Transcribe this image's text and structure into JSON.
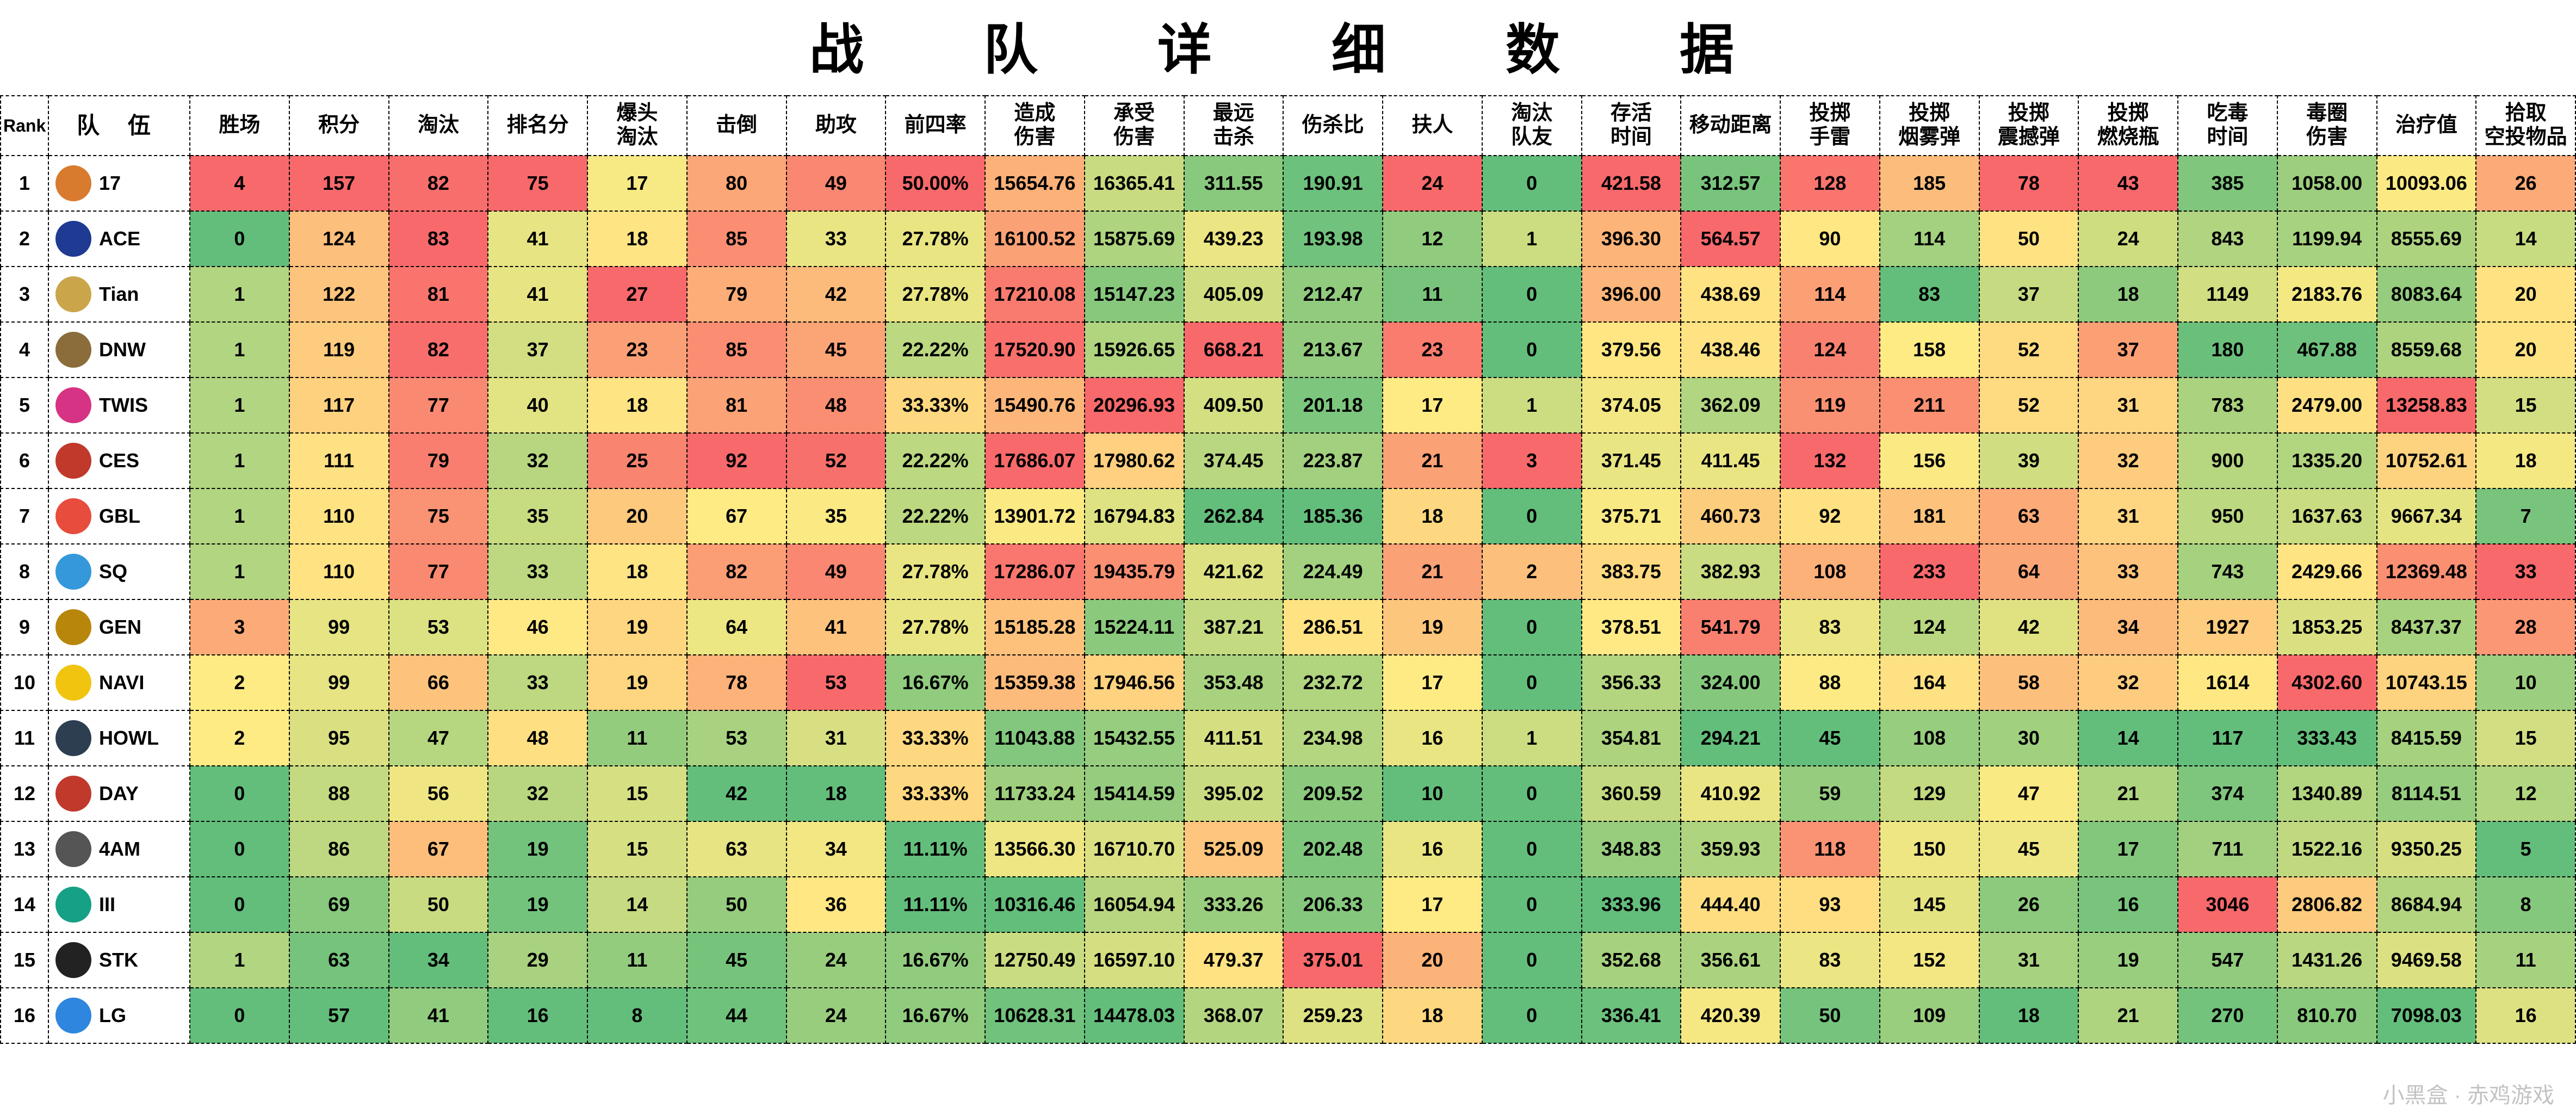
{
  "title": "战　队　详　细　数　据",
  "heatmap": {
    "color_low": "#63be7b",
    "color_mid": "#ffeb84",
    "color_high": "#f8696b",
    "border_style": "dashed",
    "border_color": "#000000",
    "font_family": "Microsoft YaHei",
    "header_bg": "#ffffff",
    "title_fontsize": 100,
    "header_fontsize": 38,
    "cell_fontsize": 36
  },
  "columns": [
    {
      "key": "rank",
      "label": "Rank",
      "heat": false
    },
    {
      "key": "team",
      "label": "队 伍",
      "heat": false
    },
    {
      "key": "wins",
      "label": "胜场",
      "heat": true,
      "dir": "high"
    },
    {
      "key": "points",
      "label": "积分",
      "heat": true,
      "dir": "high"
    },
    {
      "key": "elim",
      "label": "淘汰",
      "heat": true,
      "dir": "high"
    },
    {
      "key": "placement",
      "label": "排名分",
      "heat": true,
      "dir": "high"
    },
    {
      "key": "headshot",
      "label": "爆头\n淘汰",
      "heat": true,
      "dir": "high"
    },
    {
      "key": "knock",
      "label": "击倒",
      "heat": true,
      "dir": "high"
    },
    {
      "key": "assist",
      "label": "助攻",
      "heat": true,
      "dir": "high"
    },
    {
      "key": "top4",
      "label": "前四率",
      "heat": true,
      "dir": "high",
      "fmt": "pct"
    },
    {
      "key": "dmg_dealt",
      "label": "造成\n伤害",
      "heat": true,
      "dir": "high",
      "fmt": "f2"
    },
    {
      "key": "dmg_taken",
      "label": "承受\n伤害",
      "heat": true,
      "dir": "high",
      "fmt": "f2"
    },
    {
      "key": "long_kill",
      "label": "最远\n击杀",
      "heat": true,
      "dir": "high",
      "fmt": "f2"
    },
    {
      "key": "kd",
      "label": "伤杀比",
      "heat": true,
      "dir": "high",
      "fmt": "f2"
    },
    {
      "key": "revive",
      "label": "扶人",
      "heat": true,
      "dir": "high"
    },
    {
      "key": "teamkill",
      "label": "淘汰\n队友",
      "heat": true,
      "dir": "high"
    },
    {
      "key": "alive",
      "label": "存活\n时间",
      "heat": true,
      "dir": "high",
      "fmt": "f2"
    },
    {
      "key": "move",
      "label": "移动距离",
      "heat": true,
      "dir": "high",
      "fmt": "f2"
    },
    {
      "key": "frag",
      "label": "投掷\n手雷",
      "heat": true,
      "dir": "high"
    },
    {
      "key": "smoke",
      "label": "投掷\n烟雾弹",
      "heat": true,
      "dir": "high"
    },
    {
      "key": "stun",
      "label": "投掷\n震撼弹",
      "heat": true,
      "dir": "high"
    },
    {
      "key": "molly",
      "label": "投掷\n燃烧瓶",
      "heat": true,
      "dir": "high"
    },
    {
      "key": "blue_time",
      "label": "吃毒\n时间",
      "heat": true,
      "dir": "high"
    },
    {
      "key": "blue_dmg",
      "label": "毒圈\n伤害",
      "heat": true,
      "dir": "high",
      "fmt": "f2"
    },
    {
      "key": "heal",
      "label": "治疗值",
      "heat": true,
      "dir": "high",
      "fmt": "f2"
    },
    {
      "key": "airdrop",
      "label": "拾取\n空投物品",
      "heat": true,
      "dir": "high"
    }
  ],
  "rows": [
    {
      "rank": 1,
      "team": "17",
      "logo_color": "#d97b2f",
      "wins": 4,
      "points": 157,
      "elim": 82,
      "placement": 75,
      "headshot": 17,
      "knock": 80,
      "assist": 49,
      "top4": 50.0,
      "dmg_dealt": 15654.76,
      "dmg_taken": 16365.41,
      "long_kill": 311.55,
      "kd": 190.91,
      "revive": 24,
      "teamkill": 0,
      "alive": 421.58,
      "move": 312.57,
      "frag": 128,
      "smoke": 185,
      "stun": 78,
      "molly": 43,
      "blue_time": 385,
      "blue_dmg": 1058.0,
      "heal": 10093.06,
      "airdrop": 26
    },
    {
      "rank": 2,
      "team": "ACE",
      "logo_color": "#1f3a93",
      "wins": 0,
      "points": 124,
      "elim": 83,
      "placement": 41,
      "headshot": 18,
      "knock": 85,
      "assist": 33,
      "top4": 27.78,
      "dmg_dealt": 16100.52,
      "dmg_taken": 15875.69,
      "long_kill": 439.23,
      "kd": 193.98,
      "revive": 12,
      "teamkill": 1,
      "alive": 396.3,
      "move": 564.57,
      "frag": 90,
      "smoke": 114,
      "stun": 50,
      "molly": 24,
      "blue_time": 843,
      "blue_dmg": 1199.94,
      "heal": 8555.69,
      "airdrop": 14
    },
    {
      "rank": 3,
      "team": "Tian",
      "logo_color": "#caa54a",
      "wins": 1,
      "points": 122,
      "elim": 81,
      "placement": 41,
      "headshot": 27,
      "knock": 79,
      "assist": 42,
      "top4": 27.78,
      "dmg_dealt": 17210.08,
      "dmg_taken": 15147.23,
      "long_kill": 405.09,
      "kd": 212.47,
      "revive": 11,
      "teamkill": 0,
      "alive": 396.0,
      "move": 438.69,
      "frag": 114,
      "smoke": 83,
      "stun": 37,
      "molly": 18,
      "blue_time": 1149,
      "blue_dmg": 2183.76,
      "heal": 8083.64,
      "airdrop": 20
    },
    {
      "rank": 4,
      "team": "DNW",
      "logo_color": "#8a6d3b",
      "wins": 1,
      "points": 119,
      "elim": 82,
      "placement": 37,
      "headshot": 23,
      "knock": 85,
      "assist": 45,
      "top4": 22.22,
      "dmg_dealt": 17520.9,
      "dmg_taken": 15926.65,
      "long_kill": 668.21,
      "kd": 213.67,
      "revive": 23,
      "teamkill": 0,
      "alive": 379.56,
      "move": 438.46,
      "frag": 124,
      "smoke": 158,
      "stun": 52,
      "molly": 37,
      "blue_time": 180,
      "blue_dmg": 467.88,
      "heal": 8559.68,
      "airdrop": 20
    },
    {
      "rank": 5,
      "team": "TWIS",
      "logo_color": "#d63384",
      "wins": 1,
      "points": 117,
      "elim": 77,
      "placement": 40,
      "headshot": 18,
      "knock": 81,
      "assist": 48,
      "top4": 33.33,
      "dmg_dealt": 15490.76,
      "dmg_taken": 20296.93,
      "long_kill": 409.5,
      "kd": 201.18,
      "revive": 17,
      "teamkill": 1,
      "alive": 374.05,
      "move": 362.09,
      "frag": 119,
      "smoke": 211,
      "stun": 52,
      "molly": 31,
      "blue_time": 783,
      "blue_dmg": 2479.0,
      "heal": 13258.83,
      "airdrop": 15
    },
    {
      "rank": 6,
      "team": "CES",
      "logo_color": "#c0392b",
      "wins": 1,
      "points": 111,
      "elim": 79,
      "placement": 32,
      "headshot": 25,
      "knock": 92,
      "assist": 52,
      "top4": 22.22,
      "dmg_dealt": 17686.07,
      "dmg_taken": 17980.62,
      "long_kill": 374.45,
      "kd": 223.87,
      "revive": 21,
      "teamkill": 3,
      "alive": 371.45,
      "move": 411.45,
      "frag": 132,
      "smoke": 156,
      "stun": 39,
      "molly": 32,
      "blue_time": 900,
      "blue_dmg": 1335.2,
      "heal": 10752.61,
      "airdrop": 18
    },
    {
      "rank": 7,
      "team": "GBL",
      "logo_color": "#e74c3c",
      "wins": 1,
      "points": 110,
      "elim": 75,
      "placement": 35,
      "headshot": 20,
      "knock": 67,
      "assist": 35,
      "top4": 22.22,
      "dmg_dealt": 13901.72,
      "dmg_taken": 16794.83,
      "long_kill": 262.84,
      "kd": 185.36,
      "revive": 18,
      "teamkill": 0,
      "alive": 375.71,
      "move": 460.73,
      "frag": 92,
      "smoke": 181,
      "stun": 63,
      "molly": 31,
      "blue_time": 950,
      "blue_dmg": 1637.63,
      "heal": 9667.34,
      "airdrop": 7
    },
    {
      "rank": 8,
      "team": "SQ",
      "logo_color": "#3498db",
      "wins": 1,
      "points": 110,
      "elim": 77,
      "placement": 33,
      "headshot": 18,
      "knock": 82,
      "assist": 49,
      "top4": 27.78,
      "dmg_dealt": 17286.07,
      "dmg_taken": 19435.79,
      "long_kill": 421.62,
      "kd": 224.49,
      "revive": 21,
      "teamkill": 2,
      "alive": 383.75,
      "move": 382.93,
      "frag": 108,
      "smoke": 233,
      "stun": 64,
      "molly": 33,
      "blue_time": 743,
      "blue_dmg": 2429.66,
      "heal": 12369.48,
      "airdrop": 33
    },
    {
      "rank": 9,
      "team": "GEN",
      "logo_color": "#b8860b",
      "wins": 3,
      "points": 99,
      "elim": 53,
      "placement": 46,
      "headshot": 19,
      "knock": 64,
      "assist": 41,
      "top4": 27.78,
      "dmg_dealt": 15185.28,
      "dmg_taken": 15224.11,
      "long_kill": 387.21,
      "kd": 286.51,
      "revive": 19,
      "teamkill": 0,
      "alive": 378.51,
      "move": 541.79,
      "frag": 83,
      "smoke": 124,
      "stun": 42,
      "molly": 34,
      "blue_time": 1927,
      "blue_dmg": 1853.25,
      "heal": 8437.37,
      "airdrop": 28
    },
    {
      "rank": 10,
      "team": "NAVI",
      "logo_color": "#f1c40f",
      "wins": 2,
      "points": 99,
      "elim": 66,
      "placement": 33,
      "headshot": 19,
      "knock": 78,
      "assist": 53,
      "top4": 16.67,
      "dmg_dealt": 15359.38,
      "dmg_taken": 17946.56,
      "long_kill": 353.48,
      "kd": 232.72,
      "revive": 17,
      "teamkill": 0,
      "alive": 356.33,
      "move": 324.0,
      "frag": 88,
      "smoke": 164,
      "stun": 58,
      "molly": 32,
      "blue_time": 1614,
      "blue_dmg": 4302.6,
      "heal": 10743.15,
      "airdrop": 10
    },
    {
      "rank": 11,
      "team": "HOWL",
      "logo_color": "#2c3e50",
      "wins": 2,
      "points": 95,
      "elim": 47,
      "placement": 48,
      "headshot": 11,
      "knock": 53,
      "assist": 31,
      "top4": 33.33,
      "dmg_dealt": 11043.88,
      "dmg_taken": 15432.55,
      "long_kill": 411.51,
      "kd": 234.98,
      "revive": 16,
      "teamkill": 1,
      "alive": 354.81,
      "move": 294.21,
      "frag": 45,
      "smoke": 108,
      "stun": 30,
      "molly": 14,
      "blue_time": 117,
      "blue_dmg": 333.43,
      "heal": 8415.59,
      "airdrop": 15
    },
    {
      "rank": 12,
      "team": "DAY",
      "logo_color": "#c0392b",
      "wins": 0,
      "points": 88,
      "elim": 56,
      "placement": 32,
      "headshot": 15,
      "knock": 42,
      "assist": 18,
      "top4": 33.33,
      "dmg_dealt": 11733.24,
      "dmg_taken": 15414.59,
      "long_kill": 395.02,
      "kd": 209.52,
      "revive": 10,
      "teamkill": 0,
      "alive": 360.59,
      "move": 410.92,
      "frag": 59,
      "smoke": 129,
      "stun": 47,
      "molly": 21,
      "blue_time": 374,
      "blue_dmg": 1340.89,
      "heal": 8114.51,
      "airdrop": 12
    },
    {
      "rank": 13,
      "team": "4AM",
      "logo_color": "#555555",
      "wins": 0,
      "points": 86,
      "elim": 67,
      "placement": 19,
      "headshot": 15,
      "knock": 63,
      "assist": 34,
      "top4": 11.11,
      "dmg_dealt": 13566.3,
      "dmg_taken": 16710.7,
      "long_kill": 525.09,
      "kd": 202.48,
      "revive": 16,
      "teamkill": 0,
      "alive": 348.83,
      "move": 359.93,
      "frag": 118,
      "smoke": 150,
      "stun": 45,
      "molly": 17,
      "blue_time": 711,
      "blue_dmg": 1522.16,
      "heal": 9350.25,
      "airdrop": 5
    },
    {
      "rank": 14,
      "team": "III",
      "logo_color": "#16a085",
      "wins": 0,
      "points": 69,
      "elim": 50,
      "placement": 19,
      "headshot": 14,
      "knock": 50,
      "assist": 36,
      "top4": 11.11,
      "dmg_dealt": 10316.46,
      "dmg_taken": 16054.94,
      "long_kill": 333.26,
      "kd": 206.33,
      "revive": 17,
      "teamkill": 0,
      "alive": 333.96,
      "move": 444.4,
      "frag": 93,
      "smoke": 145,
      "stun": 26,
      "molly": 16,
      "blue_time": 3046,
      "blue_dmg": 2806.82,
      "heal": 8684.94,
      "airdrop": 8
    },
    {
      "rank": 15,
      "team": "STK",
      "logo_color": "#222222",
      "wins": 1,
      "points": 63,
      "elim": 34,
      "placement": 29,
      "headshot": 11,
      "knock": 45,
      "assist": 24,
      "top4": 16.67,
      "dmg_dealt": 12750.49,
      "dmg_taken": 16597.1,
      "long_kill": 479.37,
      "kd": 375.01,
      "revive": 20,
      "teamkill": 0,
      "alive": 352.68,
      "move": 356.61,
      "frag": 83,
      "smoke": 152,
      "stun": 31,
      "molly": 19,
      "blue_time": 547,
      "blue_dmg": 1431.26,
      "heal": 9469.58,
      "airdrop": 11
    },
    {
      "rank": 16,
      "team": "LG",
      "logo_color": "#2e86de",
      "wins": 0,
      "points": 57,
      "elim": 41,
      "placement": 16,
      "headshot": 8,
      "knock": 44,
      "assist": 24,
      "top4": 16.67,
      "dmg_dealt": 10628.31,
      "dmg_taken": 14478.03,
      "long_kill": 368.07,
      "kd": 259.23,
      "revive": 18,
      "teamkill": 0,
      "alive": 336.41,
      "move": 420.39,
      "frag": 50,
      "smoke": 109,
      "stun": 18,
      "molly": 21,
      "blue_time": 270,
      "blue_dmg": 810.7,
      "heal": 7098.03,
      "airdrop": 16
    }
  ],
  "watermark": "小黑盒 · 赤鸡游戏"
}
